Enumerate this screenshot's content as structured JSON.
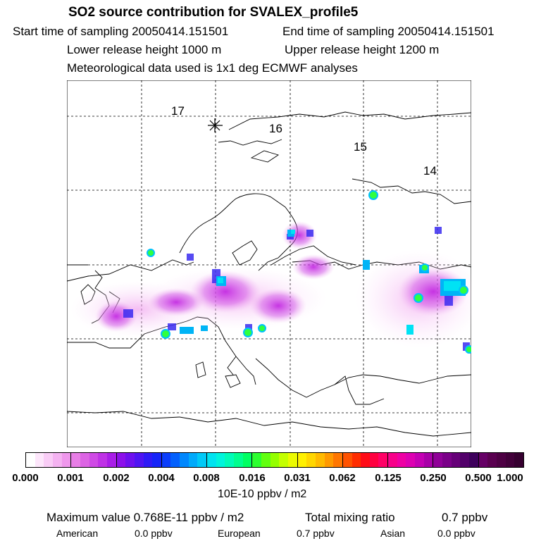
{
  "header": {
    "title": "SO2 source contribution for SVALEX_profile5",
    "start_time": "Start time of sampling 20050414.151501",
    "end_time": "End time of sampling 20050414.151501",
    "lower_release": "Lower release height 1000 m",
    "upper_release": "Upper release height 1200 m",
    "met_data": "Meteorological data used is 1x1 deg ECMWF analyses"
  },
  "map": {
    "trajectory_labels": [
      "17",
      "16",
      "15",
      "14"
    ],
    "marker": "release-site-asterisk"
  },
  "colorbar": {
    "ticks": [
      "0.000",
      "0.001",
      "0.002",
      "0.004",
      "0.008",
      "0.016",
      "0.031",
      "0.062",
      "0.125",
      "0.250",
      "0.500",
      "1.000"
    ],
    "segments": [
      [
        "#ffffff",
        "#fde6fb",
        "#f9ccf6",
        "#f4b2f1",
        "#ef97ec"
      ],
      [
        "#e87ee6",
        "#dc64e4",
        "#cf4ae5",
        "#bf32e6",
        "#a91de8"
      ],
      [
        "#8c10ea",
        "#6e10ee",
        "#4f14f2",
        "#2f1af6",
        "#1624f8"
      ],
      [
        "#0b3dfb",
        "#0360fd",
        "#0087fd",
        "#00aafb",
        "#00c9f7"
      ],
      [
        "#00e3f0",
        "#00f4dc",
        "#00fbb8",
        "#00fe8f",
        "#00ff62"
      ],
      [
        "#2cff30",
        "#62ff10",
        "#94ff00",
        "#c4ff00",
        "#ecfa00"
      ],
      [
        "#fff000",
        "#ffd600",
        "#ffba00",
        "#ff9900",
        "#ff7600"
      ],
      [
        "#ff5200",
        "#ff2d00",
        "#ff0c17",
        "#ff0040",
        "#ff0066"
      ],
      [
        "#f8008a",
        "#ee00a4",
        "#dd00b2",
        "#c400b4",
        "#a800a8"
      ],
      [
        "#900098",
        "#7a0088",
        "#660078",
        "#52006a",
        "#3e005c"
      ],
      [
        "#660066",
        "#5a0050",
        "#4e0044",
        "#42003a",
        "#360030"
      ]
    ],
    "unit": "10E-10 ppbv / m2"
  },
  "summary": {
    "max_label": "Maximum value  0.768E-11 ppbv / m2",
    "total_label": "Total mixing ratio",
    "total_value": "0.7 ppbv",
    "regions": [
      {
        "name": "American",
        "value": "0.0 ppbv"
      },
      {
        "name": "European",
        "value": "0.7 ppbv"
      },
      {
        "name": "Asian",
        "value": "0.0 ppbv"
      }
    ]
  }
}
